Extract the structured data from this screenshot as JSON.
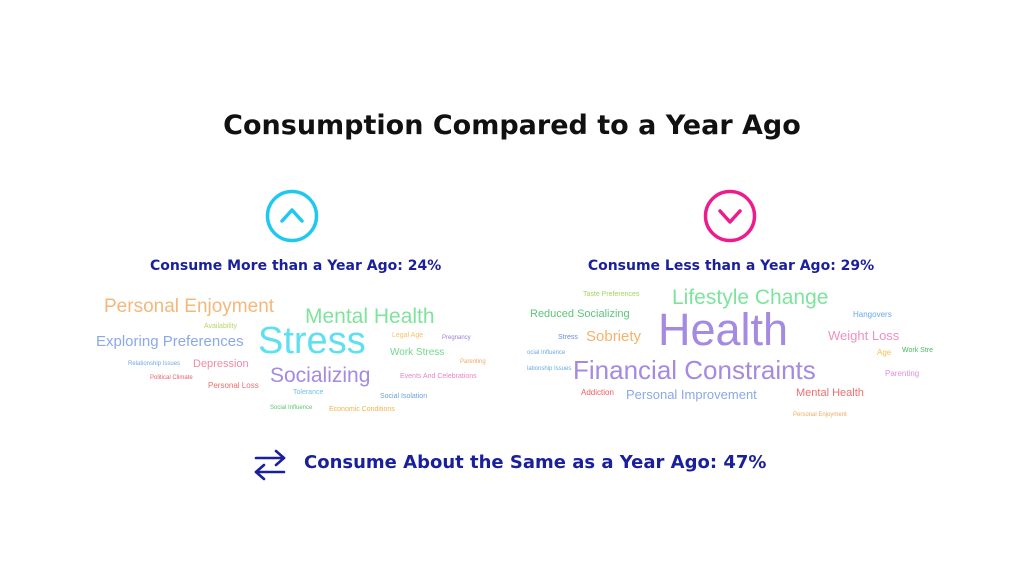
{
  "title": "Consumption Compared to a Year Ago",
  "more": {
    "label": "Consume More than a Year Ago: 24%",
    "icon": "chevron-up-circle-icon",
    "color": "#1ec8f0",
    "words": [
      {
        "text": "Personal Enjoyment",
        "color": "#f5b77a"
      },
      {
        "text": "Mental Health",
        "color": "#7ee49c"
      },
      {
        "text": "Availability",
        "color": "#b6d46a"
      },
      {
        "text": "Legal Age",
        "color": "#f5c36b"
      },
      {
        "text": "Exploring Preferences",
        "color": "#8aa8ea"
      },
      {
        "text": "Stress",
        "color": "#5fe0f2"
      },
      {
        "text": "Pregnancy",
        "color": "#9b7fd6"
      },
      {
        "text": "Work Stress",
        "color": "#6fd88c"
      },
      {
        "text": "Relationship Issues",
        "color": "#6fa8e0"
      },
      {
        "text": "Depression",
        "color": "#f08aa4"
      },
      {
        "text": "Parenting",
        "color": "#f2a85e"
      },
      {
        "text": "Political Climate",
        "color": "#e8606a"
      },
      {
        "text": "Socializing",
        "color": "#a48ae0"
      },
      {
        "text": "Events And Celebrations",
        "color": "#ea86c6"
      },
      {
        "text": "Personal Loss",
        "color": "#ee6e6e"
      },
      {
        "text": "Tolerance",
        "color": "#6ec2ee"
      },
      {
        "text": "Social Isolation",
        "color": "#6aa2dc"
      },
      {
        "text": "Social Influence",
        "color": "#5cc46e"
      },
      {
        "text": "Economic Conditions",
        "color": "#f0b350"
      }
    ]
  },
  "less": {
    "label": "Consume Less than a Year Ago: 29%",
    "icon": "chevron-down-circle-icon",
    "color": "#ec1c8c",
    "words": [
      {
        "text": "Taste Preferences",
        "color": "#a6d35e"
      },
      {
        "text": "Lifestyle Change",
        "color": "#7ee49c"
      },
      {
        "text": "Hangovers",
        "color": "#6aa8e8"
      },
      {
        "text": "Reduced Socializing",
        "color": "#5cc47a"
      },
      {
        "text": "Health",
        "color": "#a48ae0"
      },
      {
        "text": "Weight Loss",
        "color": "#f090c0"
      },
      {
        "text": "Stress",
        "color": "#6a8cdc"
      },
      {
        "text": "Sobriety",
        "color": "#f5b36a"
      },
      {
        "text": "Age",
        "color": "#f5c34a"
      },
      {
        "text": "Work Stre",
        "color": "#4cb860"
      },
      {
        "text": "ocial Influence",
        "color": "#6aa8e8"
      },
      {
        "text": "lationship Issues",
        "color": "#6aa8e8"
      },
      {
        "text": "Financial Constraints",
        "color": "#a48ae0"
      },
      {
        "text": "Parenting",
        "color": "#e090e0"
      },
      {
        "text": "Addiction",
        "color": "#ee5e5e"
      },
      {
        "text": "Personal Improvement",
        "color": "#8aa8ea"
      },
      {
        "text": "Mental Health",
        "color": "#ee6e6e"
      },
      {
        "text": "Personal Enjoyment",
        "color": "#f2a85e"
      }
    ]
  },
  "same": {
    "label": "Consume About the Same as a Year Ago: 47%",
    "icon": "swap-arrows-icon",
    "color": "#1a1f9c"
  }
}
